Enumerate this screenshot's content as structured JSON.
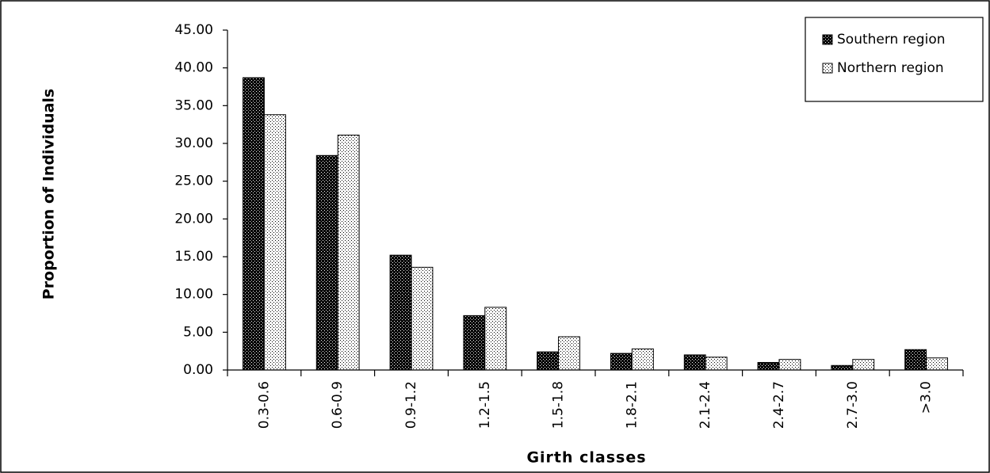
{
  "chart_data": {
    "type": "bar",
    "x_label": "Girth classes",
    "y_label": "Proportion of Individuals",
    "categories": [
      "0.3-0.6",
      "0.6-0.9",
      "0.9-1.2",
      "1.2-1.5",
      "1.5-1.8",
      "1.8-2.1",
      "2.1-2.4",
      "2.4-2.7",
      "2.7-3.0",
      ">3.0"
    ],
    "series": [
      {
        "name": "Southern region",
        "color": "#000000",
        "values": [
          38.7,
          28.4,
          15.2,
          7.2,
          2.4,
          2.2,
          2.0,
          1.0,
          0.6,
          2.7
        ]
      },
      {
        "name": "Northern region",
        "color": "#ffffff",
        "values": [
          33.8,
          31.1,
          13.6,
          8.3,
          4.4,
          2.8,
          1.7,
          1.4,
          1.4,
          1.6
        ]
      }
    ],
    "ylim": [
      0,
      45
    ],
    "yticks": [
      {
        "value": 0,
        "label": "0.00"
      },
      {
        "value": 5,
        "label": "5.00"
      },
      {
        "value": 10,
        "label": "10.00"
      },
      {
        "value": 15,
        "label": "15.00"
      },
      {
        "value": 20,
        "label": "20.00"
      },
      {
        "value": 25,
        "label": "25.00"
      },
      {
        "value": 30,
        "label": "30.00"
      },
      {
        "value": 35,
        "label": "35.00"
      },
      {
        "value": 40,
        "label": "40.00"
      },
      {
        "value": 45,
        "label": "45.00"
      }
    ],
    "grid": false,
    "legend": "top-right"
  }
}
